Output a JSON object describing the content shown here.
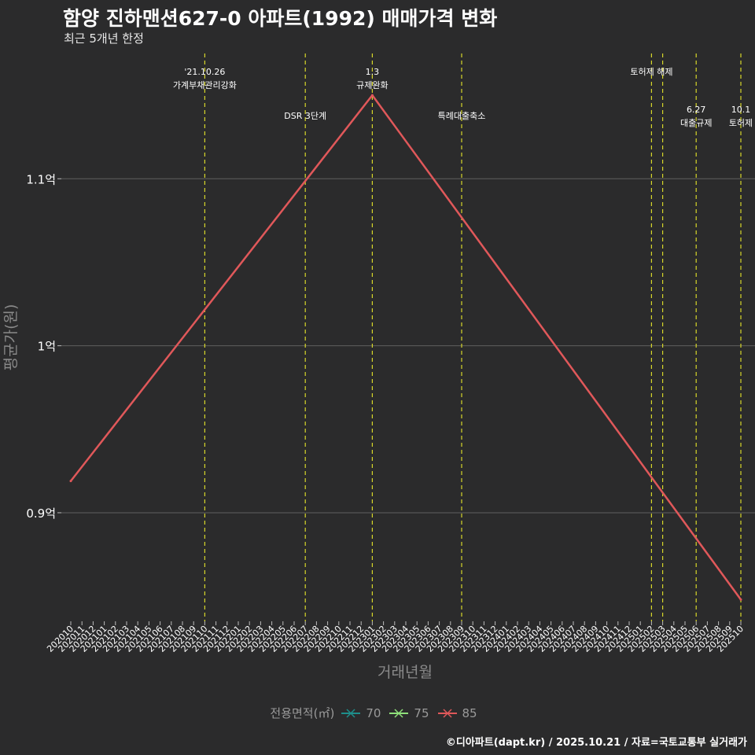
{
  "title": "함양 진하맨션627-0 아파트(1992) 매매가격 변화",
  "subtitle": "최근 5개년 한정",
  "caption": "©디아파트(dapt.kr) / 2025.10.21 / 자료=국토교통부 실거래가",
  "legend": {
    "title": "전용면적(㎡)",
    "items": [
      {
        "label": "70",
        "color": "#1e8e8a"
      },
      {
        "label": "75",
        "color": "#8fe07a"
      },
      {
        "label": "85",
        "color": "#e0585a"
      }
    ]
  },
  "chart_data": {
    "type": "line",
    "title": "함양 진하맨션627-0 아파트(1992) 매매가격 변화",
    "xlabel": "거래년월",
    "ylabel": "평균가(원)",
    "categories": [
      "202010",
      "202011",
      "202012",
      "202101",
      "202102",
      "202103",
      "202104",
      "202105",
      "202106",
      "202107",
      "202108",
      "202109",
      "202110",
      "202111",
      "202112",
      "202201",
      "202202",
      "202203",
      "202204",
      "202205",
      "202206",
      "202207",
      "202208",
      "202209",
      "202210",
      "202211",
      "202212",
      "202301",
      "202302",
      "202303",
      "202304",
      "202305",
      "202306",
      "202307",
      "202308",
      "202309",
      "202310",
      "202311",
      "202312",
      "202401",
      "202402",
      "202403",
      "202404",
      "202405",
      "202406",
      "202407",
      "202408",
      "202409",
      "202410",
      "202411",
      "202412",
      "202501",
      "202502",
      "202503",
      "202504",
      "202505",
      "202506",
      "202507",
      "202508",
      "202509",
      "202510"
    ],
    "ylim": [
      0.835,
      1.175
    ],
    "yticks": [
      0.9,
      1.0,
      1.1
    ],
    "ytick_labels": [
      "0.9억",
      "1억",
      "1.1억"
    ],
    "series": [
      {
        "name": "85",
        "color": "#e0585a",
        "points": [
          {
            "x": "202010",
            "y": 0.919
          },
          {
            "x": "202301",
            "y": 1.15
          },
          {
            "x": "202510",
            "y": 0.848
          }
        ]
      }
    ],
    "annotations": [
      {
        "x": "202110",
        "lines": [
          "'21.10.26",
          "가계부채관리강화"
        ],
        "row": 1
      },
      {
        "x": "202207",
        "lines": [
          "DSR 3단계"
        ],
        "row": 2
      },
      {
        "x": "202301",
        "lines": [
          "1.3",
          "규제완화"
        ],
        "row": 1
      },
      {
        "x": "202309",
        "lines": [
          "특례대출축소"
        ],
        "row": 2
      },
      {
        "x": "202502",
        "lines": [
          "토허제 해제"
        ],
        "row": 1
      },
      {
        "x": "202503",
        "lines": [],
        "row": 1
      },
      {
        "x": "202506",
        "lines": [
          "6.27",
          "대출규제"
        ],
        "row": 3
      },
      {
        "x": "202510",
        "lines": [
          "10.1",
          "토허제"
        ],
        "row": 3
      }
    ]
  }
}
